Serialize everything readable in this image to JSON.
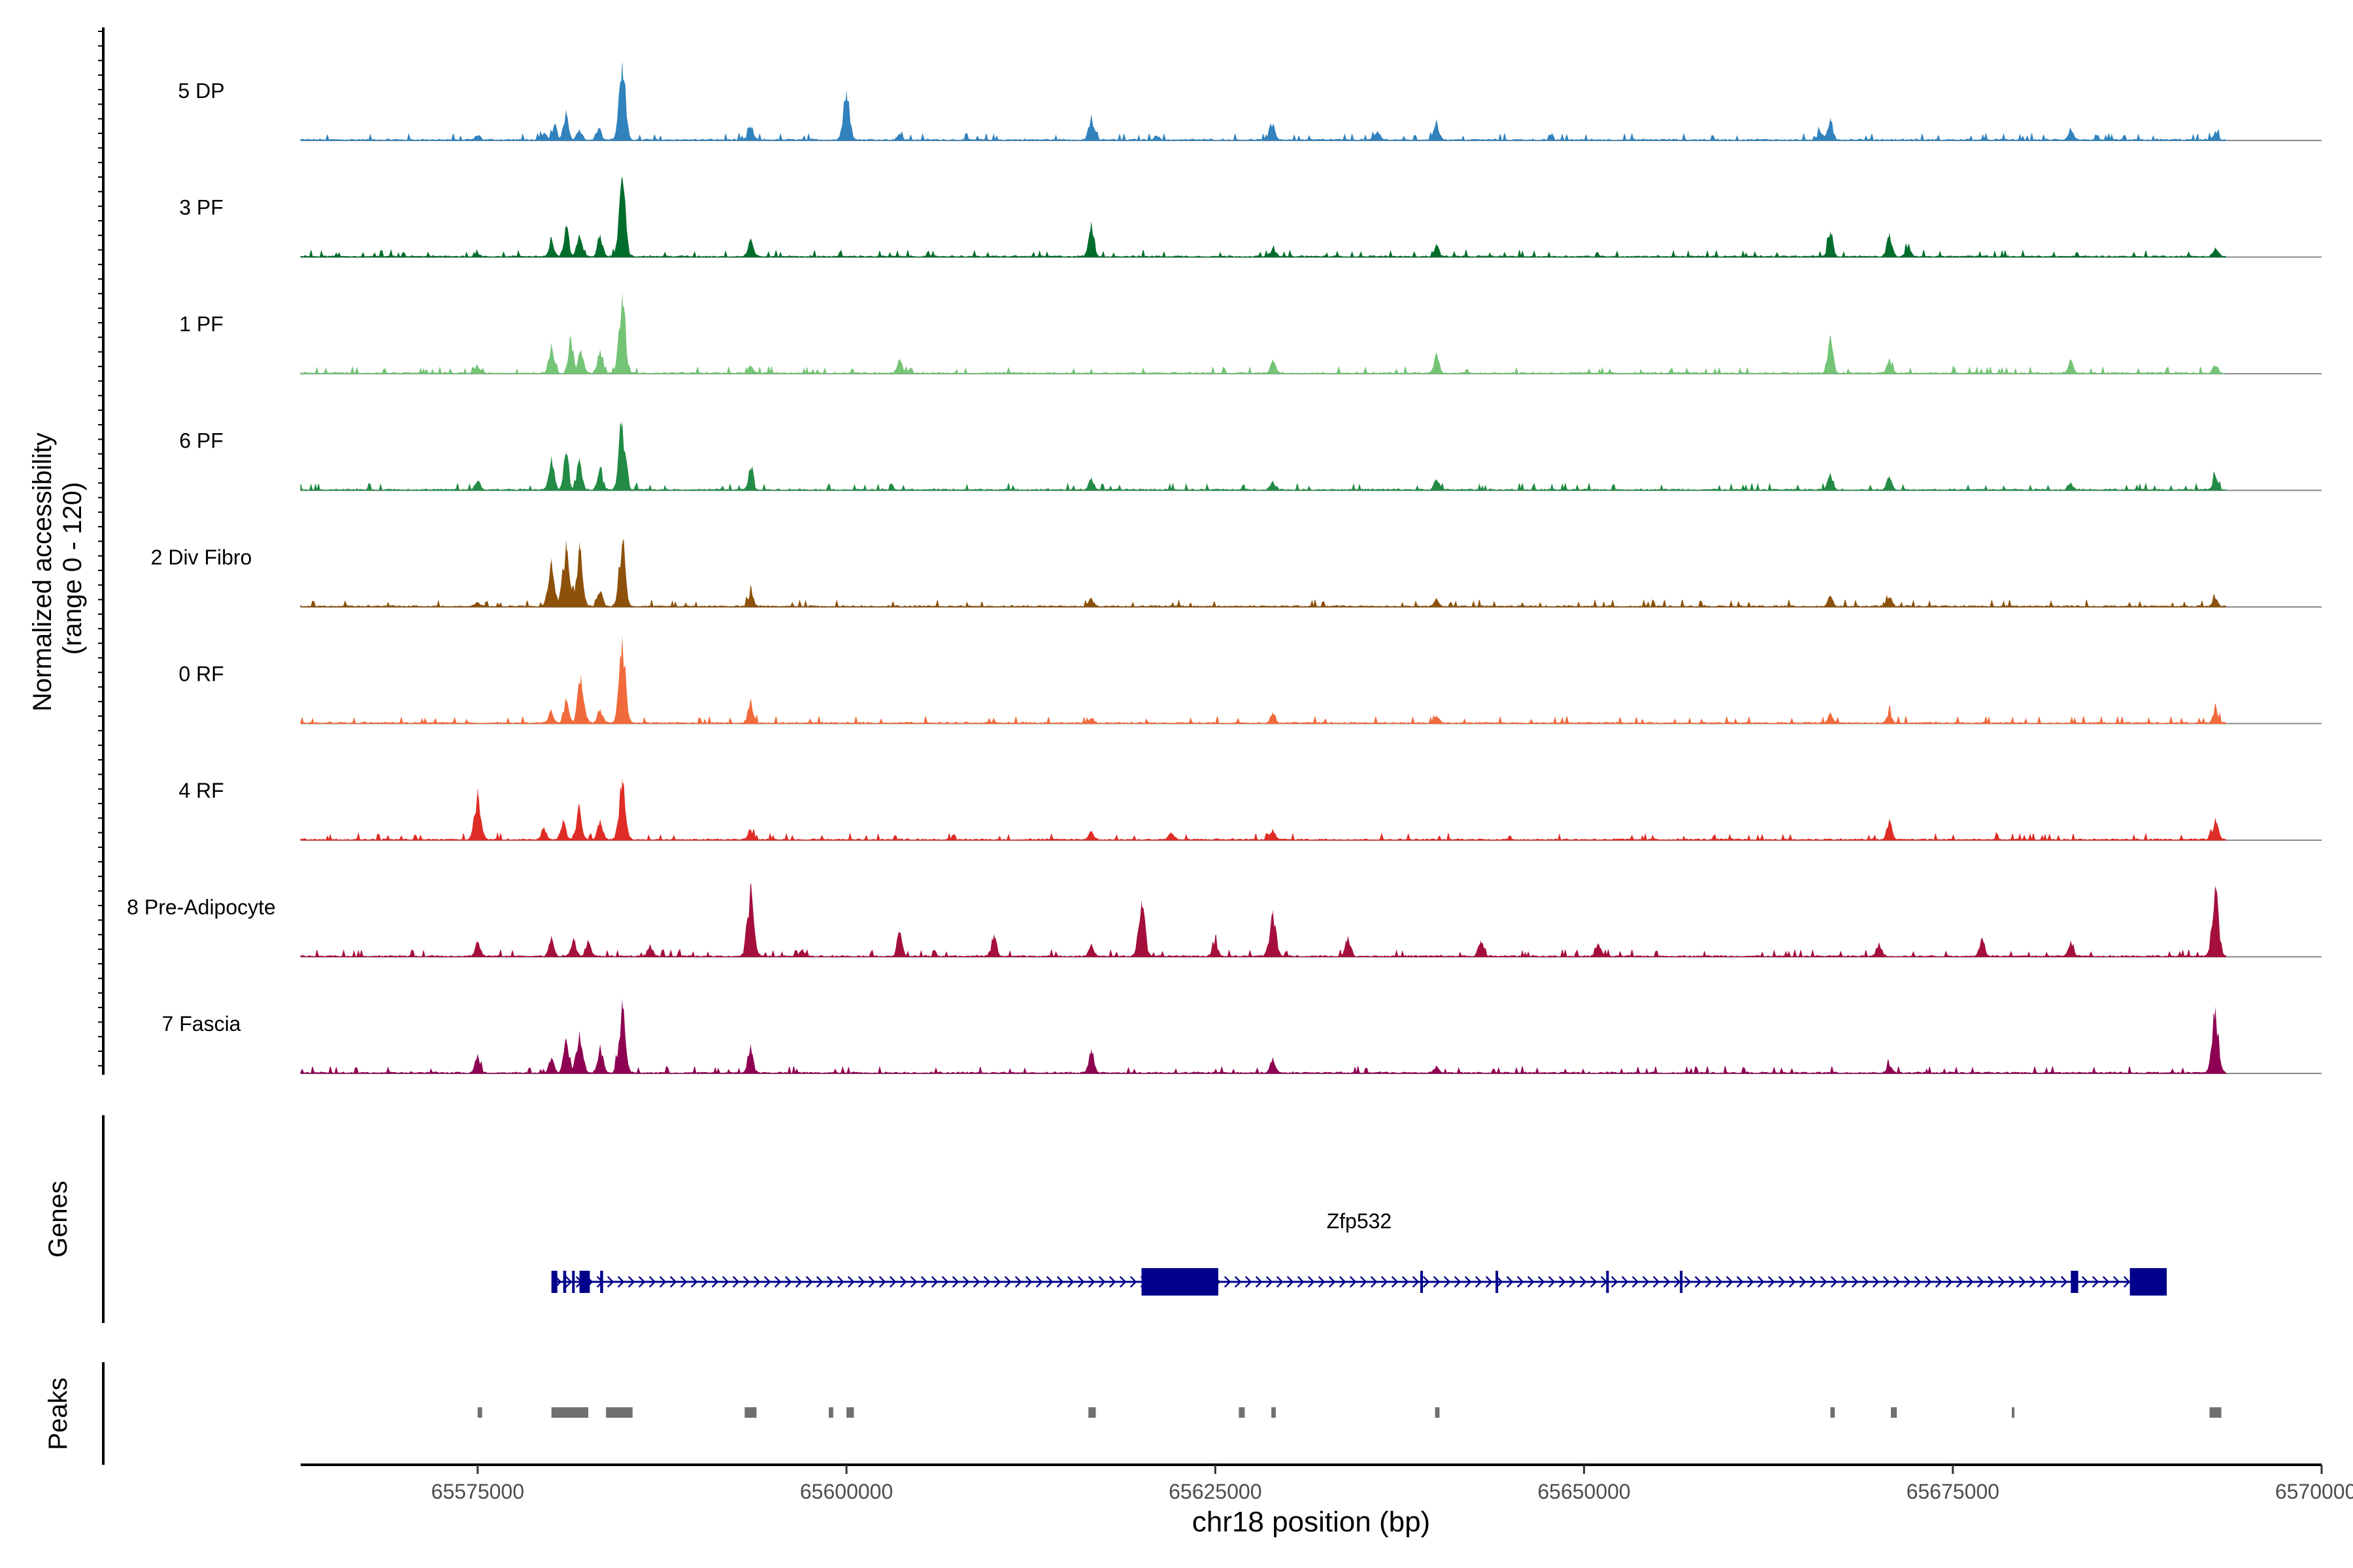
{
  "chart_data": {
    "type": "area",
    "title": "",
    "chromosome": "chr18",
    "xlabel": "chr18 position (bp)",
    "ylabel_line1": "Normalized accessibility",
    "ylabel_line2": "(range 0 - 120)",
    "y_range": [
      0,
      120
    ],
    "x_range": [
      65563000,
      65700000
    ],
    "x_ticks": [
      65575000,
      65600000,
      65625000,
      65650000,
      65675000,
      65700000
    ],
    "x_tick_labels": [
      "65575000",
      "65600000",
      "65625000",
      "65650000",
      "65675000",
      "65700000"
    ],
    "genes_label": "Genes",
    "peaks_label": "Peaks",
    "tracks": [
      {
        "name": "5 DP",
        "color": "#3182BD",
        "peaks": [
          [
            65575000,
            6
          ],
          [
            65579500,
            10
          ],
          [
            65580200,
            20
          ],
          [
            65581000,
            38
          ],
          [
            65581900,
            14
          ],
          [
            65583200,
            16
          ],
          [
            65584800,
            98
          ],
          [
            65593500,
            18
          ],
          [
            65600000,
            62
          ],
          [
            65603600,
            8
          ],
          [
            65616600,
            32
          ],
          [
            65621000,
            6
          ],
          [
            65628900,
            20
          ],
          [
            65636000,
            12
          ],
          [
            65640000,
            26
          ],
          [
            65666000,
            10
          ],
          [
            65666700,
            28
          ],
          [
            65683000,
            14
          ],
          [
            65692800,
            10
          ]
        ]
      },
      {
        "name": "3 PF",
        "color": "#006D2C",
        "peaks": [
          [
            65575000,
            4
          ],
          [
            65580000,
            24
          ],
          [
            65581000,
            40
          ],
          [
            65581900,
            28
          ],
          [
            65583300,
            28
          ],
          [
            65584800,
            100
          ],
          [
            65593500,
            22
          ],
          [
            65616600,
            44
          ],
          [
            65628900,
            12
          ],
          [
            65640000,
            14
          ],
          [
            65666700,
            32
          ],
          [
            65670700,
            30
          ],
          [
            65672000,
            14
          ],
          [
            65692800,
            12
          ]
        ]
      },
      {
        "name": "1 PF",
        "color": "#74C476",
        "peaks": [
          [
            65575000,
            10
          ],
          [
            65580000,
            38
          ],
          [
            65581300,
            48
          ],
          [
            65582000,
            30
          ],
          [
            65583300,
            30
          ],
          [
            65584800,
            100
          ],
          [
            65593500,
            10
          ],
          [
            65603600,
            18
          ],
          [
            65628900,
            18
          ],
          [
            65640000,
            24
          ],
          [
            65666700,
            48
          ],
          [
            65670700,
            18
          ],
          [
            65683000,
            16
          ],
          [
            65692800,
            10
          ]
        ]
      },
      {
        "name": "6 PF",
        "color": "#238B45",
        "peaks": [
          [
            65575000,
            12
          ],
          [
            65580000,
            42
          ],
          [
            65581000,
            48
          ],
          [
            65581900,
            40
          ],
          [
            65583300,
            30
          ],
          [
            65584800,
            86
          ],
          [
            65593500,
            28
          ],
          [
            65616600,
            16
          ],
          [
            65628900,
            12
          ],
          [
            65640000,
            14
          ],
          [
            65666700,
            22
          ],
          [
            65670700,
            18
          ],
          [
            65683000,
            10
          ],
          [
            65692800,
            18
          ]
        ]
      },
      {
        "name": "2 Div Fibro",
        "color": "#8C510A",
        "peaks": [
          [
            65575000,
            6
          ],
          [
            65580000,
            60
          ],
          [
            65581000,
            82
          ],
          [
            65581900,
            80
          ],
          [
            65583300,
            20
          ],
          [
            65584800,
            82
          ],
          [
            65593500,
            18
          ],
          [
            65616600,
            10
          ],
          [
            65640000,
            10
          ],
          [
            65666700,
            14
          ],
          [
            65670700,
            12
          ],
          [
            65692800,
            8
          ]
        ]
      },
      {
        "name": "0 RF",
        "color": "#F16A3B",
        "peaks": [
          [
            65580000,
            16
          ],
          [
            65581000,
            30
          ],
          [
            65582000,
            60
          ],
          [
            65583300,
            18
          ],
          [
            65584800,
            108
          ],
          [
            65593500,
            30
          ],
          [
            65616600,
            6
          ],
          [
            65628900,
            14
          ],
          [
            65640000,
            10
          ],
          [
            65666700,
            12
          ],
          [
            65670700,
            14
          ],
          [
            65692800,
            18
          ]
        ]
      },
      {
        "name": "4 RF",
        "color": "#DE2D26",
        "peaks": [
          [
            65575000,
            64
          ],
          [
            65579500,
            16
          ],
          [
            65580800,
            26
          ],
          [
            65581900,
            42
          ],
          [
            65583300,
            26
          ],
          [
            65584800,
            76
          ],
          [
            65593500,
            14
          ],
          [
            65616600,
            10
          ],
          [
            65622000,
            10
          ],
          [
            65628900,
            14
          ],
          [
            65670700,
            26
          ],
          [
            65692800,
            28
          ]
        ]
      },
      {
        "name": "8 Pre-Adipocyte",
        "color": "#A50F3B",
        "peaks": [
          [
            65575000,
            18
          ],
          [
            65580000,
            26
          ],
          [
            65581500,
            24
          ],
          [
            65582500,
            20
          ],
          [
            65586700,
            14
          ],
          [
            65593500,
            92
          ],
          [
            65597000,
            10
          ],
          [
            65603600,
            30
          ],
          [
            65610000,
            28
          ],
          [
            65616600,
            14
          ],
          [
            65620000,
            70
          ],
          [
            65625000,
            20
          ],
          [
            65628900,
            58
          ],
          [
            65634000,
            26
          ],
          [
            65643000,
            20
          ],
          [
            65651000,
            16
          ],
          [
            65670000,
            18
          ],
          [
            65677000,
            24
          ],
          [
            65683000,
            20
          ],
          [
            65692800,
            88
          ]
        ]
      },
      {
        "name": "7 Fascia",
        "color": "#8E0152",
        "peaks": [
          [
            65575000,
            24
          ],
          [
            65580000,
            20
          ],
          [
            65581000,
            44
          ],
          [
            65581900,
            52
          ],
          [
            65583300,
            36
          ],
          [
            65584800,
            92
          ],
          [
            65593500,
            36
          ],
          [
            65616600,
            30
          ],
          [
            65628900,
            20
          ],
          [
            65640000,
            10
          ],
          [
            65670700,
            10
          ],
          [
            65692800,
            82
          ]
        ]
      }
    ],
    "gene": {
      "name": "Zfp532",
      "strand": "+",
      "color": "#00008B",
      "start": 65580000,
      "end": 65689500,
      "exons": [
        [
          65580000,
          65580400
        ],
        [
          65580800,
          65581000
        ],
        [
          65581400,
          65581500
        ],
        [
          65581900,
          65582600
        ],
        [
          65583300,
          65583500
        ],
        [
          65620000,
          65625200
        ],
        [
          65638900,
          65639000
        ],
        [
          65644000,
          65644100
        ],
        [
          65651500,
          65651600
        ],
        [
          65656500,
          65656600
        ],
        [
          65683000,
          65683500
        ],
        [
          65687000,
          65689500
        ]
      ]
    },
    "peaks_track": {
      "color": "#707070",
      "regions": [
        [
          65575000,
          65575300
        ],
        [
          65580000,
          65582500
        ],
        [
          65583700,
          65585500
        ],
        [
          65593100,
          65593900
        ],
        [
          65598800,
          65599100
        ],
        [
          65600000,
          65600500
        ],
        [
          65616400,
          65616900
        ],
        [
          65626600,
          65627000
        ],
        [
          65628800,
          65629100
        ],
        [
          65639900,
          65640200
        ],
        [
          65666700,
          65667000
        ],
        [
          65670800,
          65671200
        ],
        [
          65679000,
          65679100
        ],
        [
          65692400,
          65693200
        ]
      ]
    }
  }
}
